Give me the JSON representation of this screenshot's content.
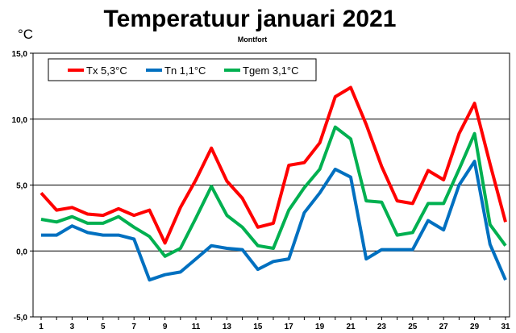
{
  "chart_data": {
    "type": "line",
    "title": "Temperatuur januari 2021",
    "subtitle": "Montfort",
    "unit_label": "°C",
    "x": [
      1,
      2,
      3,
      4,
      5,
      6,
      7,
      8,
      9,
      10,
      11,
      12,
      13,
      14,
      15,
      16,
      17,
      18,
      19,
      20,
      21,
      22,
      23,
      24,
      25,
      26,
      27,
      28,
      29,
      30,
      31
    ],
    "xticks": [
      "1",
      "3",
      "5",
      "7",
      "9",
      "11",
      "13",
      "15",
      "17",
      "19",
      "21",
      "23",
      "25",
      "27",
      "29",
      "31"
    ],
    "xlim": [
      1,
      31
    ],
    "ylim": [
      -5.0,
      15.0
    ],
    "yticks": [
      "15,0",
      "10,0",
      "5,0",
      "0,0",
      "-5,0"
    ],
    "ytick_values": [
      15,
      10,
      5,
      0,
      -5
    ],
    "grid": true,
    "legend_position": "top-left",
    "series": [
      {
        "name": "Tx 5,3°C",
        "color": "#ff0000",
        "values": [
          4.4,
          3.1,
          3.3,
          2.8,
          2.7,
          3.2,
          2.7,
          3.1,
          0.6,
          3.3,
          5.4,
          7.8,
          5.3,
          4.0,
          1.8,
          2.1,
          6.5,
          6.7,
          8.2,
          11.7,
          12.4,
          9.6,
          6.4,
          3.8,
          3.6,
          6.1,
          5.4,
          8.9,
          11.2,
          6.6,
          2.2
        ]
      },
      {
        "name": "Tn 1,1°C",
        "color": "#0070c0",
        "values": [
          1.2,
          1.2,
          1.9,
          1.4,
          1.2,
          1.2,
          0.9,
          -2.2,
          -1.8,
          -1.6,
          -0.6,
          0.4,
          0.2,
          0.1,
          -1.4,
          -0.8,
          -0.6,
          2.9,
          4.4,
          6.2,
          5.6,
          -0.6,
          0.1,
          0.1,
          0.1,
          2.3,
          1.6,
          5.0,
          6.8,
          0.5,
          -2.2
        ]
      },
      {
        "name": "Tgem 3,1°C",
        "color": "#00b050",
        "values": [
          2.4,
          2.2,
          2.6,
          2.1,
          2.1,
          2.6,
          1.8,
          1.1,
          -0.4,
          0.2,
          2.5,
          4.9,
          2.7,
          1.8,
          0.4,
          0.2,
          3.1,
          4.8,
          6.2,
          9.4,
          8.5,
          3.8,
          3.7,
          1.2,
          1.4,
          3.6,
          3.6,
          6.2,
          8.9,
          2.0,
          0.4
        ]
      }
    ]
  }
}
